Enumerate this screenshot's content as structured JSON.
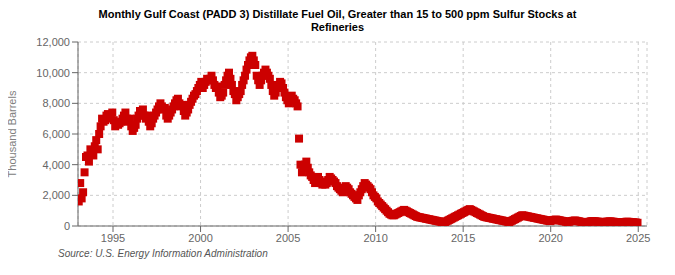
{
  "chart_data": {
    "type": "scatter",
    "title": "Monthly Gulf Coast (PADD 3) Distillate Fuel Oil, Greater than 15 to 500 ppm Sulfur Stocks at\nRefineries",
    "ylabel": "Thousand Barrels",
    "annotations": [
      "Source: U.S. Energy Information Administration"
    ],
    "color": "#cc0000",
    "marker": "square",
    "grid": true,
    "xlim": [
      1993.0,
      2025.5
    ],
    "xticks": [
      1995,
      2000,
      2005,
      2010,
      2015,
      2020,
      2025
    ],
    "ylim": [
      0,
      12000
    ],
    "yticks": [
      0,
      {
        "value": 2000,
        "label": "2,000"
      },
      {
        "value": 4000,
        "label": "4,000"
      },
      {
        "value": 6000,
        "label": "6,000"
      },
      {
        "value": 8000,
        "label": "8,000"
      },
      {
        "value": 10000,
        "label": "10,000"
      },
      {
        "value": 12000,
        "label": "12,000"
      }
    ],
    "x": [
      1993.0416666666667,
      1993.125,
      1993.2083333333333,
      1993.2916666666667,
      1993.375,
      1993.4583333333333,
      1993.5416666666667,
      1993.625,
      1993.7083333333333,
      1993.7916666666667,
      1993.875,
      1993.9583333333333,
      1994.0416666666667,
      1994.125,
      1994.2083333333333,
      1994.2916666666667,
      1994.375,
      1994.4583333333333,
      1994.5416666666667,
      1994.625,
      1994.7083333333333,
      1994.7916666666667,
      1994.875,
      1994.9583333333333,
      1995.0416666666667,
      1995.125,
      1995.2083333333333,
      1995.2916666666667,
      1995.375,
      1995.4583333333333,
      1995.5416666666667,
      1995.625,
      1995.7083333333333,
      1995.7916666666667,
      1995.875,
      1995.9583333333333,
      1996.0416666666667,
      1996.125,
      1996.2083333333333,
      1996.2916666666667,
      1996.375,
      1996.4583333333333,
      1996.5416666666667,
      1996.625,
      1996.7083333333333,
      1996.7916666666667,
      1996.875,
      1996.9583333333333,
      1997.0416666666667,
      1997.125,
      1997.2083333333333,
      1997.2916666666667,
      1997.375,
      1997.4583333333333,
      1997.5416666666667,
      1997.625,
      1997.7083333333333,
      1997.7916666666667,
      1997.875,
      1997.9583333333333,
      1998.0416666666667,
      1998.125,
      1998.2083333333333,
      1998.2916666666667,
      1998.375,
      1998.4583333333333,
      1998.5416666666667,
      1998.625,
      1998.7083333333333,
      1998.7916666666667,
      1998.875,
      1998.9583333333333,
      1999.0416666666667,
      1999.125,
      1999.2083333333333,
      1999.2916666666667,
      1999.375,
      1999.4583333333333,
      1999.5416666666667,
      1999.625,
      1999.7083333333333,
      1999.7916666666667,
      1999.875,
      1999.9583333333333,
      2000.0416666666667,
      2000.125,
      2000.2083333333333,
      2000.2916666666667,
      2000.375,
      2000.4583333333333,
      2000.5416666666667,
      2000.625,
      2000.7083333333333,
      2000.7916666666667,
      2000.875,
      2000.9583333333333,
      2001.0416666666667,
      2001.125,
      2001.2083333333333,
      2001.2916666666667,
      2001.375,
      2001.4583333333333,
      2001.5416666666667,
      2001.625,
      2001.7083333333333,
      2001.7916666666667,
      2001.875,
      2001.9583333333333,
      2002.0416666666667,
      2002.125,
      2002.2083333333333,
      2002.2916666666667,
      2002.375,
      2002.4583333333333,
      2002.5416666666667,
      2002.625,
      2002.7083333333333,
      2002.7916666666667,
      2002.875,
      2002.9583333333333,
      2003.0416666666667,
      2003.125,
      2003.2083333333333,
      2003.2916666666667,
      2003.375,
      2003.4583333333333,
      2003.5416666666667,
      2003.625,
      2003.7083333333333,
      2003.7916666666667,
      2003.875,
      2003.9583333333333,
      2004.0416666666667,
      2004.125,
      2004.2083333333333,
      2004.2916666666667,
      2004.375,
      2004.4583333333333,
      2004.5416666666667,
      2004.625,
      2004.7083333333333,
      2004.7916666666667,
      2004.875,
      2004.9583333333333,
      2005.0416666666667,
      2005.125,
      2005.2083333333333,
      2005.2916666666667,
      2005.375,
      2005.4583333333333,
      2005.5416666666667,
      2005.625,
      2005.7083333333333,
      2005.7916666666667,
      2005.875,
      2005.9583333333333,
      2006.0416666666667,
      2006.125,
      2006.2083333333333,
      2006.2916666666667,
      2006.375,
      2006.4583333333333,
      2006.5416666666667,
      2006.625,
      2006.7083333333333,
      2006.7916666666667,
      2006.875,
      2006.9583333333333,
      2007.0416666666667,
      2007.125,
      2007.2083333333333,
      2007.2916666666667,
      2007.375,
      2007.4583333333333,
      2007.5416666666667,
      2007.625,
      2007.7083333333333,
      2007.7916666666667,
      2007.875,
      2007.9583333333333,
      2008.0416666666667,
      2008.125,
      2008.2083333333333,
      2008.2916666666667,
      2008.375,
      2008.4583333333333,
      2008.5416666666667,
      2008.625,
      2008.7083333333333,
      2008.7916666666667,
      2008.875,
      2008.9583333333333,
      2009.0416666666667,
      2009.125,
      2009.2083333333333,
      2009.2916666666667,
      2009.375,
      2009.4583333333333,
      2009.5416666666667,
      2009.625,
      2009.7083333333333,
      2009.7916666666667,
      2009.875,
      2009.9583333333333,
      2010.0416666666667,
      2010.125,
      2010.2083333333333,
      2010.2916666666667,
      2010.375,
      2010.4583333333333,
      2010.5416666666667,
      2010.625,
      2010.7083333333333,
      2010.7916666666667,
      2010.875,
      2010.9583333333333,
      2011.0416666666667,
      2011.125,
      2011.2083333333333,
      2011.2916666666667,
      2011.375,
      2011.4583333333333,
      2011.5416666666667,
      2011.625,
      2011.7083333333333,
      2011.7916666666667,
      2011.875,
      2011.9583333333333,
      2012.0416666666667,
      2012.125,
      2012.2083333333333,
      2012.2916666666667,
      2012.375,
      2012.4583333333333,
      2012.5416666666667,
      2012.625,
      2012.7083333333333,
      2012.7916666666667,
      2012.875,
      2012.9583333333333,
      2013.0416666666667,
      2013.125,
      2013.2083333333333,
      2013.2916666666667,
      2013.375,
      2013.4583333333333,
      2013.5416666666667,
      2013.625,
      2013.7083333333333,
      2013.7916666666667,
      2013.875,
      2013.9583333333333,
      2014.0416666666667,
      2014.125,
      2014.2083333333333,
      2014.2916666666667,
      2014.375,
      2014.4583333333333,
      2014.5416666666667,
      2014.625,
      2014.7083333333333,
      2014.7916666666667,
      2014.875,
      2014.9583333333333,
      2015.0416666666667,
      2015.125,
      2015.2083333333333,
      2015.2916666666667,
      2015.375,
      2015.4583333333333,
      2015.5416666666667,
      2015.625,
      2015.7083333333333,
      2015.7916666666667,
      2015.875,
      2015.9583333333333,
      2016.0416666666667,
      2016.125,
      2016.2083333333333,
      2016.2916666666667,
      2016.375,
      2016.4583333333333,
      2016.5416666666667,
      2016.625,
      2016.7083333333333,
      2016.7916666666667,
      2016.875,
      2016.9583333333333,
      2017.0416666666667,
      2017.125,
      2017.2083333333333,
      2017.2916666666667,
      2017.375,
      2017.4583333333333,
      2017.5416666666667,
      2017.625,
      2017.7083333333333,
      2017.7916666666667,
      2017.875,
      2017.9583333333333,
      2018.0416666666667,
      2018.125,
      2018.2083333333333,
      2018.2916666666667,
      2018.375,
      2018.4583333333333,
      2018.5416666666667,
      2018.625,
      2018.7083333333333,
      2018.7916666666667,
      2018.875,
      2018.9583333333333,
      2019.0416666666667,
      2019.125,
      2019.2083333333333,
      2019.2916666666667,
      2019.375,
      2019.4583333333333,
      2019.5416666666667,
      2019.625,
      2019.7083333333333,
      2019.7916666666667,
      2019.875,
      2019.9583333333333,
      2020.0416666666667,
      2020.125,
      2020.2083333333333,
      2020.2916666666667,
      2020.375,
      2020.4583333333333,
      2020.5416666666667,
      2020.625,
      2020.7083333333333,
      2020.7916666666667,
      2020.875,
      2020.9583333333333,
      2021.0416666666667,
      2021.125,
      2021.2083333333333,
      2021.2916666666667,
      2021.375,
      2021.4583333333333,
      2021.5416666666667,
      2021.625,
      2021.7083333333333,
      2021.7916666666667,
      2021.875,
      2021.9583333333333,
      2022.0416666666667,
      2022.125,
      2022.2083333333333,
      2022.2916666666667,
      2022.375,
      2022.4583333333333,
      2022.5416666666667,
      2022.625,
      2022.7083333333333,
      2022.7916666666667,
      2022.875,
      2022.9583333333333,
      2023.0416666666667,
      2023.125,
      2023.2083333333333,
      2023.2916666666667,
      2023.375,
      2023.4583333333333,
      2023.5416666666667,
      2023.625,
      2023.7083333333333,
      2023.7916666666667,
      2023.875,
      2023.9583333333333,
      2024.0416666666667,
      2024.125,
      2024.2083333333333,
      2024.2916666666667,
      2024.375,
      2024.4583333333333,
      2024.5416666666667,
      2024.625,
      2024.7083333333333,
      2024.7916666666667,
      2024.875,
      2024.9583333333333
    ],
    "values": [
      1600,
      2800,
      1800,
      2200,
      3500,
      4500,
      4600,
      4200,
      5000,
      4800,
      4600,
      5200,
      5600,
      5000,
      6000,
      6500,
      7000,
      6800,
      6900,
      7200,
      7300,
      7100,
      7000,
      7400,
      6900,
      6500,
      6700,
      6600,
      6700,
      6800,
      7000,
      7200,
      7400,
      7000,
      6800,
      7000,
      6500,
      6200,
      6400,
      6600,
      7000,
      7200,
      7500,
      7300,
      7600,
      7200,
      7000,
      7200,
      6800,
      6500,
      6700,
      7000,
      7200,
      7400,
      7600,
      7800,
      8000,
      7800,
      7600,
      7700,
      7200,
      7000,
      7200,
      7400,
      7600,
      7800,
      8000,
      8200,
      8300,
      8000,
      7800,
      7900,
      7500,
      7200,
      7400,
      7600,
      7900,
      8100,
      8300,
      8500,
      8600,
      8800,
      9000,
      9200,
      9400,
      9000,
      9200,
      9400,
      9600,
      9500,
      9600,
      9800,
      9500,
      9200,
      9000,
      9100,
      8700,
      8400,
      8500,
      8700,
      9200,
      9500,
      9800,
      10000,
      9600,
      9200,
      8800,
      8600,
      8200,
      8400,
      8600,
      8800,
      9200,
      9500,
      9800,
      10200,
      10500,
      10800,
      11000,
      11100,
      10800,
      10500,
      9800,
      9500,
      9200,
      9500,
      9800,
      10000,
      10200,
      10000,
      9800,
      9600,
      9200,
      8800,
      8500,
      8700,
      9000,
      9200,
      9400,
      9300,
      9000,
      8700,
      8400,
      8200,
      8000,
      8200,
      8500,
      8300,
      8200,
      8000,
      7800,
      5700,
      4000,
      3500,
      3800,
      4000,
      4200,
      3800,
      3500,
      3300,
      3200,
      3000,
      2800,
      3000,
      3200,
      3000,
      2800,
      2700,
      2900,
      2700,
      2800,
      3000,
      3200,
      3100,
      3000,
      2900,
      2800,
      2600,
      2500,
      2400,
      2300,
      2200,
      2400,
      2600,
      2500,
      2400,
      2200,
      2100,
      2000,
      1900,
      1800,
      1700,
      2000,
      2200,
      2400,
      2600,
      2800,
      2700,
      2600,
      2500,
      2400,
      2200,
      2000,
      1900,
      1800,
      1600,
      1500,
      1400,
      1300,
      1200,
      1100,
      1000,
      900,
      800,
      750,
      700,
      700,
      750,
      800,
      850,
      900,
      950,
      1000,
      1050,
      1000,
      950,
      900,
      850,
      800,
      750,
      700,
      650,
      600,
      580,
      560,
      540,
      520,
      500,
      480,
      460,
      440,
      420,
      400,
      380,
      360,
      340,
      320,
      300,
      280,
      260,
      250,
      240,
      300,
      350,
      400,
      450,
      500,
      550,
      600,
      650,
      700,
      750,
      800,
      850,
      900,
      950,
      1000,
      1050,
      1100,
      1050,
      1000,
      950,
      900,
      850,
      800,
      750,
      700,
      650,
      600,
      580,
      560,
      540,
      520,
      500,
      480,
      460,
      440,
      420,
      400,
      380,
      360,
      340,
      320,
      300,
      280,
      260,
      300,
      350,
      400,
      450,
      500,
      550,
      600,
      650,
      700,
      680,
      660,
      640,
      620,
      600,
      580,
      560,
      540,
      520,
      500,
      480,
      460,
      440,
      420,
      400,
      380,
      360,
      340,
      320,
      350,
      380,
      400,
      420,
      400,
      380,
      360,
      340,
      320,
      300,
      280,
      260,
      280,
      300,
      320,
      340,
      360,
      340,
      320,
      300,
      280,
      260,
      240,
      220,
      240,
      260,
      280,
      300,
      320,
      310,
      300,
      290,
      280,
      270,
      260,
      250,
      260,
      270,
      280,
      290,
      300,
      290,
      280,
      270,
      260,
      250,
      240,
      230,
      240,
      250,
      260,
      270,
      280,
      270,
      260,
      250,
      240,
      230,
      220,
      210
    ]
  }
}
